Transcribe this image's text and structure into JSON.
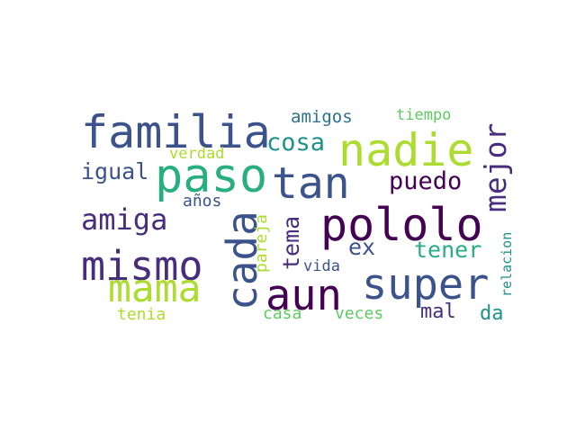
{
  "colors": {
    "background": "#ffffff",
    "dark_purple": "#440154",
    "purple": "#472d7b",
    "indigo": "#3b528b",
    "blue": "#2c728e",
    "teal": "#21918c",
    "green": "#28ae80",
    "light_green": "#5ec962",
    "lime": "#addc30"
  },
  "words": {
    "familia": "familia",
    "nadie": "nadie",
    "paso": "paso",
    "tan": "tan",
    "pololo": "pololo",
    "mismo": "mismo",
    "super": "super",
    "aun": "aun",
    "mama": "mama",
    "cada": "cada",
    "mejor": "mejor",
    "amiga": "amiga",
    "cosa": "cosa",
    "puedo": "puedo",
    "igual": "igual",
    "tener": "tener",
    "ex": "ex",
    "tema": "tema",
    "mal": "mal",
    "da": "da",
    "amigos": "amigos",
    "tiempo": "tiempo",
    "verdad": "verdad",
    "anos": "años",
    "pareja": "pareja",
    "vida": "vida",
    "relacion": "relacion",
    "casa": "casa",
    "veces": "veces",
    "tenia": "tenia"
  }
}
